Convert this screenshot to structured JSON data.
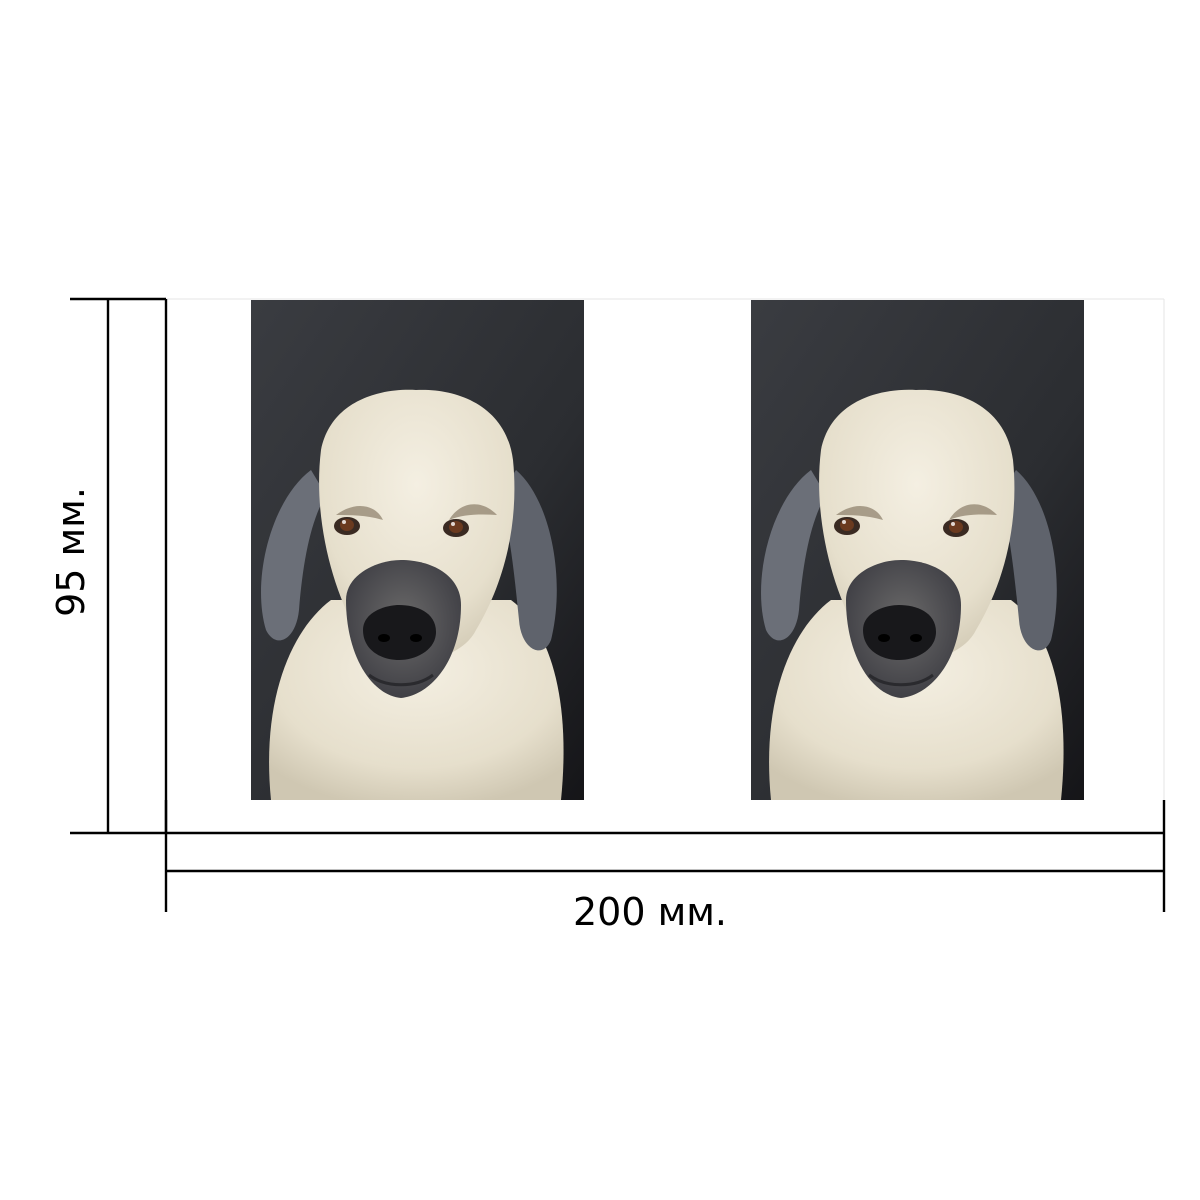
{
  "dimensions": {
    "height_label": "95 мм.",
    "width_label": "200 мм."
  },
  "photos": [
    {
      "subject": "dog-photo"
    },
    {
      "subject": "dog-photo"
    }
  ],
  "colors": {
    "background": "#ffffff",
    "lines": "#000000",
    "photo_background": "#2b2d31",
    "fur": "#ece5d3",
    "ear": "#6b6f78",
    "muzzle": "#4a4a50",
    "nose": "#18181b"
  }
}
